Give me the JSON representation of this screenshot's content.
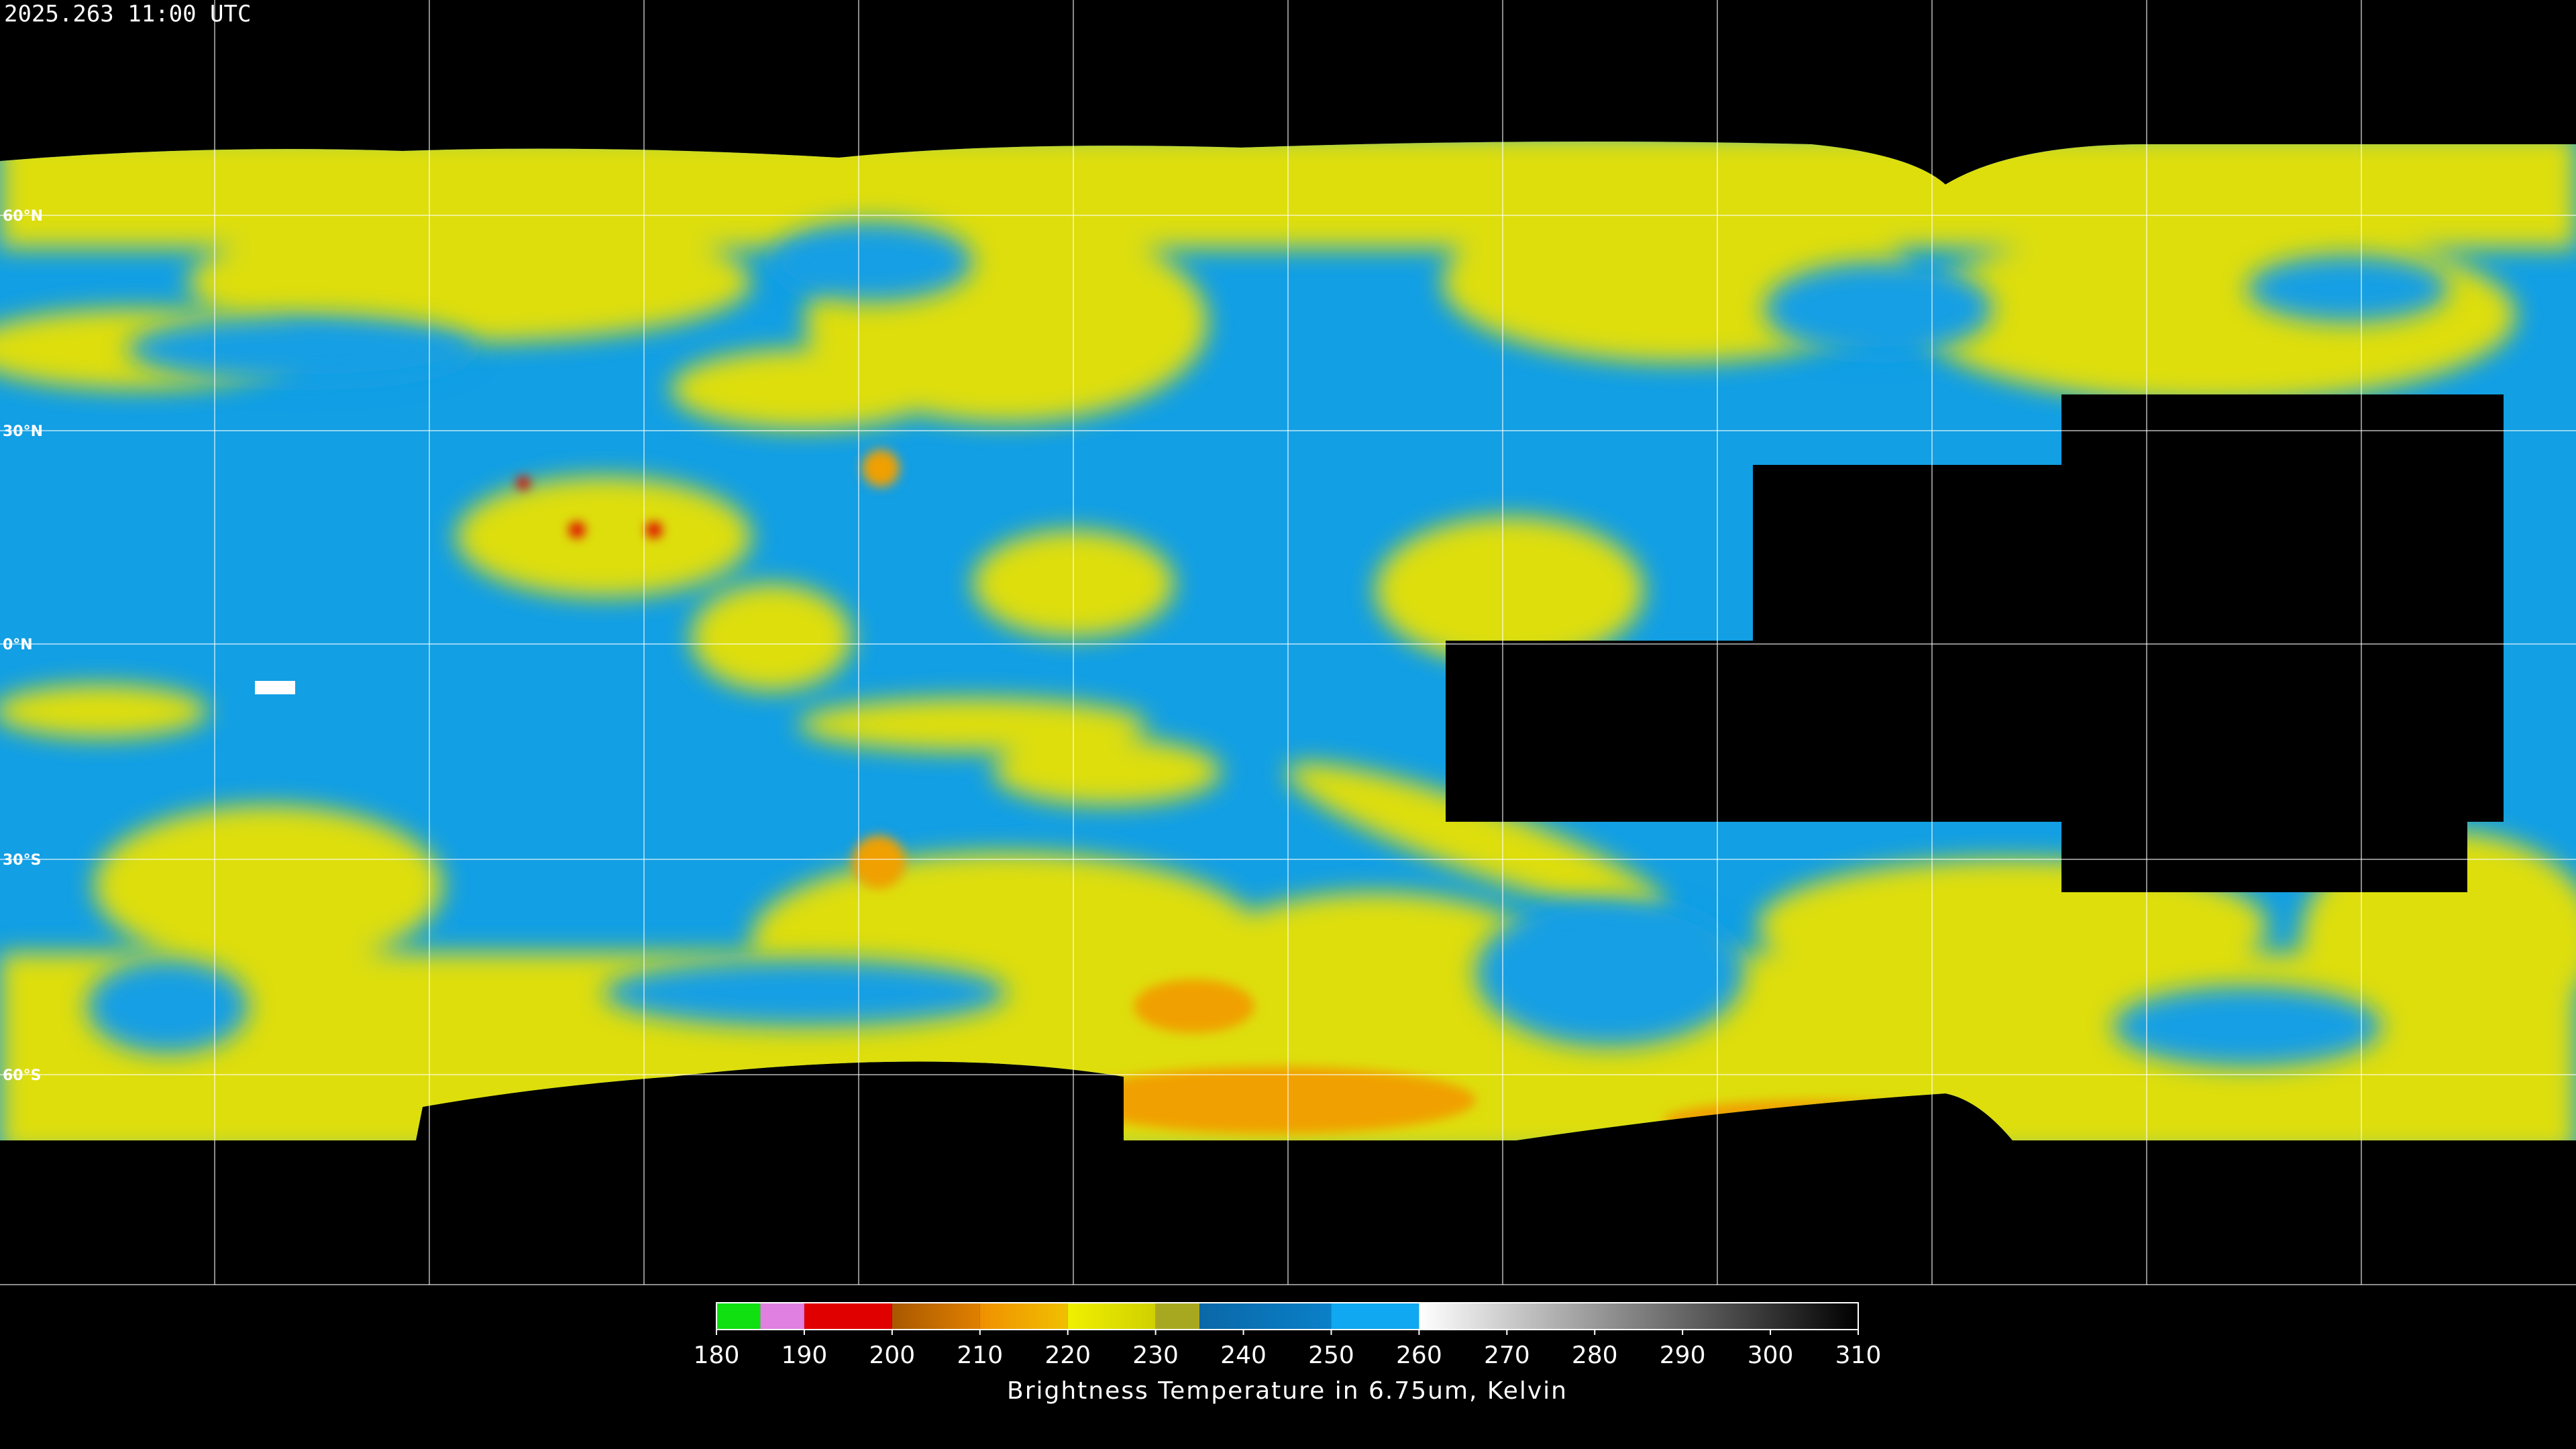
{
  "header": {
    "timestamp": "2025.263 11:00 UTC"
  },
  "map": {
    "lat_labels": [
      "60°N",
      "30°N",
      "0°N",
      "30°S",
      "60°S"
    ]
  },
  "colorbar": {
    "range": [
      180,
      310
    ],
    "ticks": [
      180,
      190,
      200,
      210,
      220,
      230,
      240,
      250,
      260,
      270,
      280,
      290,
      300,
      310
    ],
    "label": "Brightness Temperature in 6.75um, Kelvin",
    "segments": [
      {
        "from": 180,
        "to": 185,
        "colors": [
          "#10e010",
          "#10e010"
        ]
      },
      {
        "from": 185,
        "to": 190,
        "colors": [
          "#e080e0",
          "#e080e0"
        ]
      },
      {
        "from": 190,
        "to": 200,
        "colors": [
          "#e00000",
          "#e00000"
        ]
      },
      {
        "from": 200,
        "to": 210,
        "colors": [
          "#a85800",
          "#e08000"
        ]
      },
      {
        "from": 210,
        "to": 220,
        "colors": [
          "#f09000",
          "#f0c000"
        ]
      },
      {
        "from": 220,
        "to": 230,
        "colors": [
          "#f0f000",
          "#d0d000"
        ]
      },
      {
        "from": 230,
        "to": 235,
        "colors": [
          "#a8a820",
          "#a8a820"
        ]
      },
      {
        "from": 235,
        "to": 250,
        "colors": [
          "#0a68a8",
          "#0a80c8"
        ]
      },
      {
        "from": 250,
        "to": 260,
        "colors": [
          "#10a8f0",
          "#10a8f0"
        ]
      },
      {
        "from": 260,
        "to": 310,
        "colors": [
          "#ffffff",
          "#000000"
        ]
      }
    ]
  }
}
